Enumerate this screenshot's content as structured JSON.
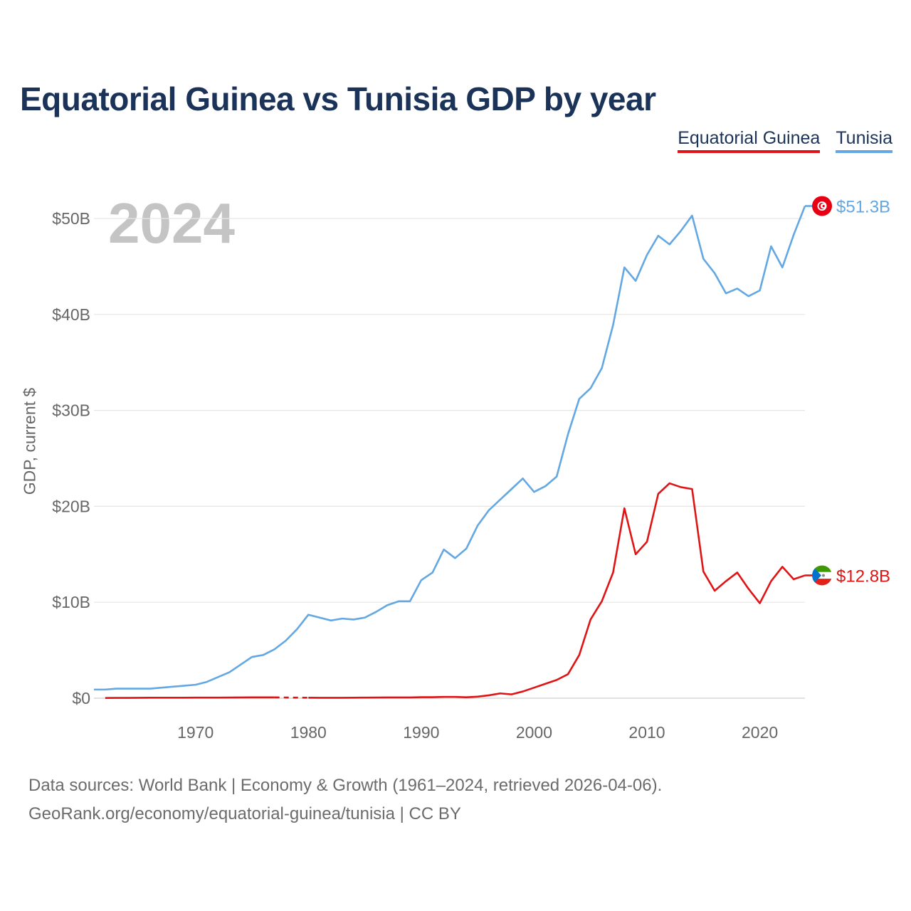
{
  "title": "Equatorial Guinea vs Tunisia GDP by year",
  "year_display": "2024",
  "footer": {
    "line1": "Data sources: World Bank | Economy & Growth (1961–2024, retrieved 2026-04-06).",
    "line2": "GeoRank.org/economy/equatorial-guinea/tunisia | CC BY"
  },
  "chart_data": {
    "type": "line",
    "title": "Equatorial Guinea vs Tunisia GDP by year",
    "xlabel": "",
    "ylabel": "GDP, current $",
    "xlim": [
      1961,
      2024
    ],
    "ylim": [
      0,
      50
    ],
    "x_ticks": [
      1970,
      1980,
      1990,
      2000,
      2010,
      2020
    ],
    "y_ticks": [
      0,
      10,
      20,
      30,
      40,
      50
    ],
    "y_tick_labels": [
      "$0",
      "$10B",
      "$20B",
      "$30B",
      "$40B",
      "$50B"
    ],
    "grid": true,
    "legend_position": "top-right",
    "unit": "billion USD",
    "series": [
      {
        "name": "Equatorial Guinea",
        "color": "#e01414",
        "end_label": "$12.8B",
        "gap_years": [
          1978,
          1979
        ],
        "points": [
          [
            1962,
            0.02
          ],
          [
            1963,
            0.03
          ],
          [
            1964,
            0.03
          ],
          [
            1965,
            0.04
          ],
          [
            1966,
            0.05
          ],
          [
            1967,
            0.05
          ],
          [
            1968,
            0.05
          ],
          [
            1969,
            0.05
          ],
          [
            1970,
            0.06
          ],
          [
            1971,
            0.06
          ],
          [
            1972,
            0.06
          ],
          [
            1973,
            0.07
          ],
          [
            1974,
            0.08
          ],
          [
            1975,
            0.09
          ],
          [
            1976,
            0.09
          ],
          [
            1977,
            0.09
          ],
          [
            1978,
            0.07
          ],
          [
            1979,
            0.06
          ],
          [
            1980,
            0.05
          ],
          [
            1981,
            0.04
          ],
          [
            1982,
            0.04
          ],
          [
            1983,
            0.04
          ],
          [
            1984,
            0.05
          ],
          [
            1985,
            0.06
          ],
          [
            1986,
            0.07
          ],
          [
            1987,
            0.08
          ],
          [
            1988,
            0.08
          ],
          [
            1989,
            0.08
          ],
          [
            1990,
            0.11
          ],
          [
            1991,
            0.11
          ],
          [
            1992,
            0.14
          ],
          [
            1993,
            0.14
          ],
          [
            1994,
            0.1
          ],
          [
            1995,
            0.16
          ],
          [
            1996,
            0.3
          ],
          [
            1997,
            0.5
          ],
          [
            1998,
            0.4
          ],
          [
            1999,
            0.7
          ],
          [
            2000,
            1.1
          ],
          [
            2001,
            1.5
          ],
          [
            2002,
            1.9
          ],
          [
            2003,
            2.5
          ],
          [
            2004,
            4.5
          ],
          [
            2005,
            8.2
          ],
          [
            2006,
            10.1
          ],
          [
            2007,
            13.1
          ],
          [
            2008,
            19.8
          ],
          [
            2009,
            15.0
          ],
          [
            2010,
            16.3
          ],
          [
            2011,
            21.3
          ],
          [
            2012,
            22.4
          ],
          [
            2013,
            22.0
          ],
          [
            2014,
            21.8
          ],
          [
            2015,
            13.2
          ],
          [
            2016,
            11.2
          ],
          [
            2017,
            12.2
          ],
          [
            2018,
            13.1
          ],
          [
            2019,
            11.4
          ],
          [
            2020,
            9.9
          ],
          [
            2021,
            12.2
          ],
          [
            2022,
            13.7
          ],
          [
            2023,
            12.4
          ],
          [
            2024,
            12.8
          ]
        ]
      },
      {
        "name": "Tunisia",
        "color": "#63a7e3",
        "end_label": "$51.3B",
        "points": [
          [
            1961,
            0.9
          ],
          [
            1962,
            0.9
          ],
          [
            1963,
            1.0
          ],
          [
            1964,
            1.0
          ],
          [
            1965,
            1.0
          ],
          [
            1966,
            1.0
          ],
          [
            1967,
            1.1
          ],
          [
            1968,
            1.2
          ],
          [
            1969,
            1.3
          ],
          [
            1970,
            1.4
          ],
          [
            1971,
            1.7
          ],
          [
            1972,
            2.2
          ],
          [
            1973,
            2.7
          ],
          [
            1974,
            3.5
          ],
          [
            1975,
            4.3
          ],
          [
            1976,
            4.5
          ],
          [
            1977,
            5.1
          ],
          [
            1978,
            6.0
          ],
          [
            1979,
            7.2
          ],
          [
            1980,
            8.7
          ],
          [
            1981,
            8.4
          ],
          [
            1982,
            8.1
          ],
          [
            1983,
            8.3
          ],
          [
            1984,
            8.2
          ],
          [
            1985,
            8.4
          ],
          [
            1986,
            9.0
          ],
          [
            1987,
            9.7
          ],
          [
            1988,
            10.1
          ],
          [
            1989,
            10.1
          ],
          [
            1990,
            12.3
          ],
          [
            1991,
            13.1
          ],
          [
            1992,
            15.5
          ],
          [
            1993,
            14.6
          ],
          [
            1994,
            15.6
          ],
          [
            1995,
            18.0
          ],
          [
            1996,
            19.6
          ],
          [
            1997,
            20.7
          ],
          [
            1998,
            21.8
          ],
          [
            1999,
            22.9
          ],
          [
            2000,
            21.5
          ],
          [
            2001,
            22.1
          ],
          [
            2002,
            23.1
          ],
          [
            2003,
            27.5
          ],
          [
            2004,
            31.2
          ],
          [
            2005,
            32.3
          ],
          [
            2006,
            34.4
          ],
          [
            2007,
            38.9
          ],
          [
            2008,
            44.9
          ],
          [
            2009,
            43.5
          ],
          [
            2010,
            46.2
          ],
          [
            2011,
            48.2
          ],
          [
            2012,
            47.3
          ],
          [
            2013,
            48.7
          ],
          [
            2014,
            50.3
          ],
          [
            2015,
            45.8
          ],
          [
            2016,
            44.3
          ],
          [
            2017,
            42.2
          ],
          [
            2018,
            42.7
          ],
          [
            2019,
            41.9
          ],
          [
            2020,
            42.5
          ],
          [
            2021,
            47.1
          ],
          [
            2022,
            44.9
          ],
          [
            2023,
            48.3
          ],
          [
            2024,
            51.3
          ]
        ]
      }
    ]
  }
}
